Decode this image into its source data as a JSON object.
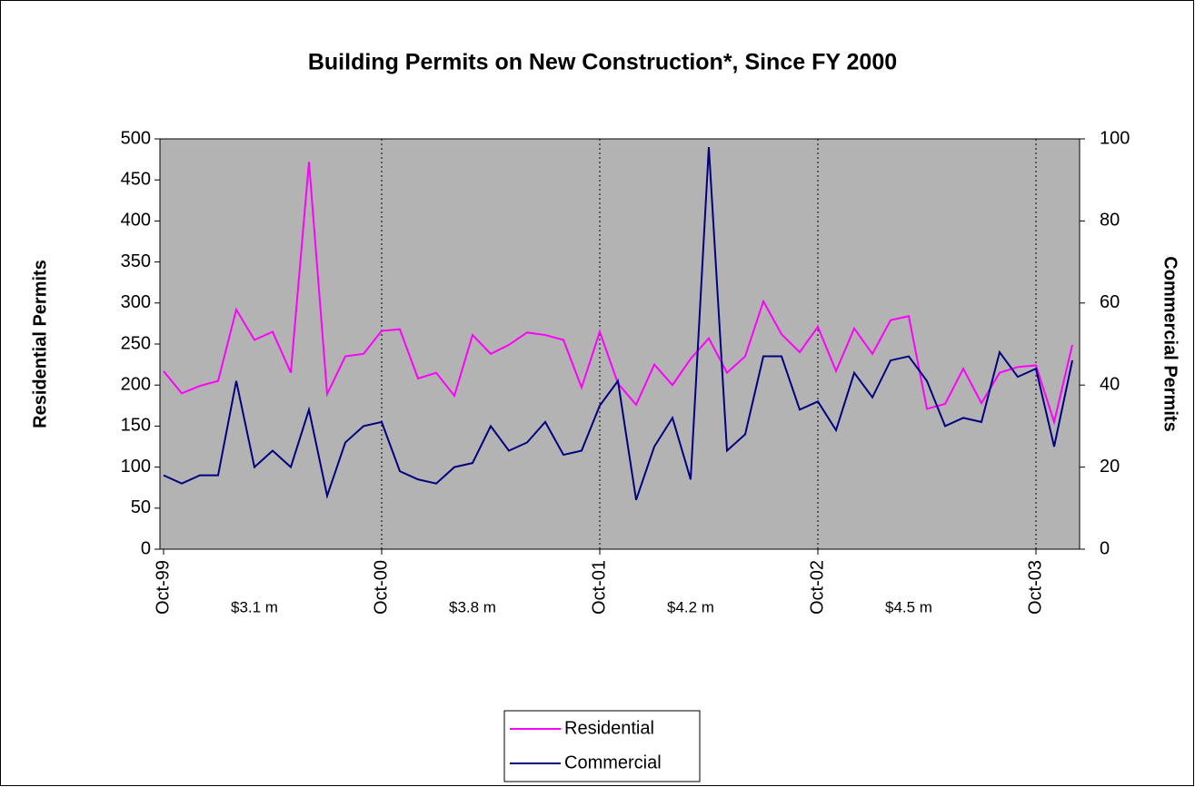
{
  "chart_data": {
    "type": "line",
    "title": "Building Permits on New Construction*, Since FY 2000",
    "ylabel": "Residential Permits",
    "y2label": "Commercial Permits",
    "categories": [
      "Oct-99",
      null,
      null,
      null,
      null,
      null,
      null,
      null,
      null,
      null,
      null,
      null,
      "Oct-00",
      null,
      null,
      null,
      null,
      null,
      null,
      null,
      null,
      null,
      null,
      null,
      "Oct-01",
      null,
      null,
      null,
      null,
      null,
      null,
      null,
      null,
      null,
      null,
      null,
      "Oct-02",
      null,
      null,
      null,
      null,
      null,
      null,
      null,
      null,
      null,
      null,
      null,
      "Oct-03",
      null,
      null
    ],
    "series": [
      {
        "name": "Residential",
        "color": "#ff00ff",
        "values": [
          217,
          190,
          199,
          205,
          292,
          255,
          265,
          215,
          472,
          189,
          235,
          238,
          266,
          268,
          208,
          215,
          187,
          261,
          238,
          249,
          264,
          261,
          255,
          197,
          265,
          202,
          176,
          225,
          200,
          232,
          257,
          215,
          235,
          302,
          262,
          240,
          271,
          217,
          269,
          238,
          279,
          284,
          171,
          177,
          220,
          178,
          215,
          222,
          224,
          155,
          249
        ]
      },
      {
        "name": "Commercial",
        "color": "#000080",
        "axis": "y2",
        "values": [
          18,
          16,
          18,
          18,
          41,
          20,
          24,
          20,
          34,
          13,
          26,
          30,
          31,
          19,
          17,
          16,
          20,
          21,
          30,
          24,
          26,
          31,
          23,
          24,
          35,
          41,
          12,
          25,
          32,
          17,
          98,
          24,
          28,
          47,
          47,
          34,
          36,
          29,
          43,
          37,
          46,
          47,
          41,
          30,
          32,
          31,
          48,
          42,
          44,
          25,
          46
        ]
      }
    ],
    "ylim": [
      0,
      500
    ],
    "yticks": [
      0,
      50,
      100,
      150,
      200,
      250,
      300,
      350,
      400,
      450,
      500
    ],
    "y2lim": [
      0,
      100
    ],
    "y2ticks": [
      0,
      20,
      40,
      60,
      80,
      100
    ],
    "annotations": [
      "$3.1 m",
      "$3.8 m",
      "$4.2 m",
      "$4.5 m"
    ],
    "background": "#b3b3b3",
    "legend": "bottom"
  }
}
